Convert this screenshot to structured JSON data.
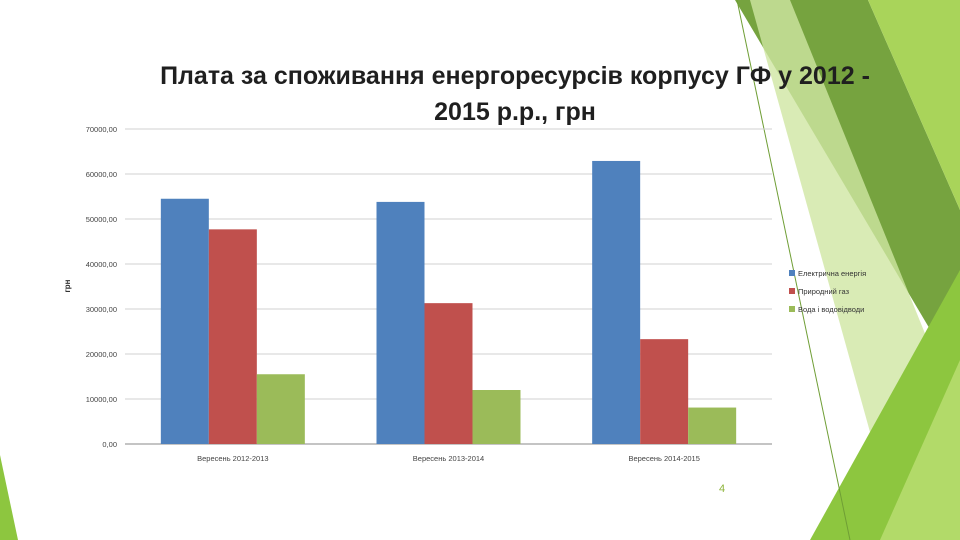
{
  "slide": {
    "number": "4",
    "accent_colors": [
      "#8dc63f",
      "#6f9e35",
      "#a9d45a",
      "#cfe6a3"
    ]
  },
  "chart_data": {
    "type": "bar",
    "title": "Плата за споживання енергоресурсів корпусу ГФ у 2012 - 2015 р.р., грн",
    "xlabel": "",
    "ylabel": "грн",
    "ylim": [
      0,
      70000
    ],
    "yticks": [
      0,
      10000,
      20000,
      30000,
      40000,
      50000,
      60000,
      70000
    ],
    "ytick_labels": [
      "0,00",
      "10000,00",
      "20000,00",
      "30000,00",
      "40000,00",
      "50000,00",
      "60000,00",
      "70000,00"
    ],
    "categories": [
      "Вересень 2012-2013",
      "Вересень 2013-2014",
      "Вересень 2014-2015"
    ],
    "series": [
      {
        "name": "Електрична енергія",
        "color": "#4f81bd",
        "values": [
          54500,
          53800,
          62900
        ]
      },
      {
        "name": "Природний газ",
        "color": "#c0504d",
        "values": [
          47700,
          31300,
          23300
        ]
      },
      {
        "name": "Вода і водовідводи",
        "color": "#9bbb59",
        "values": [
          15500,
          12000,
          8100
        ]
      }
    ],
    "grid": true,
    "legend_position": "right"
  }
}
